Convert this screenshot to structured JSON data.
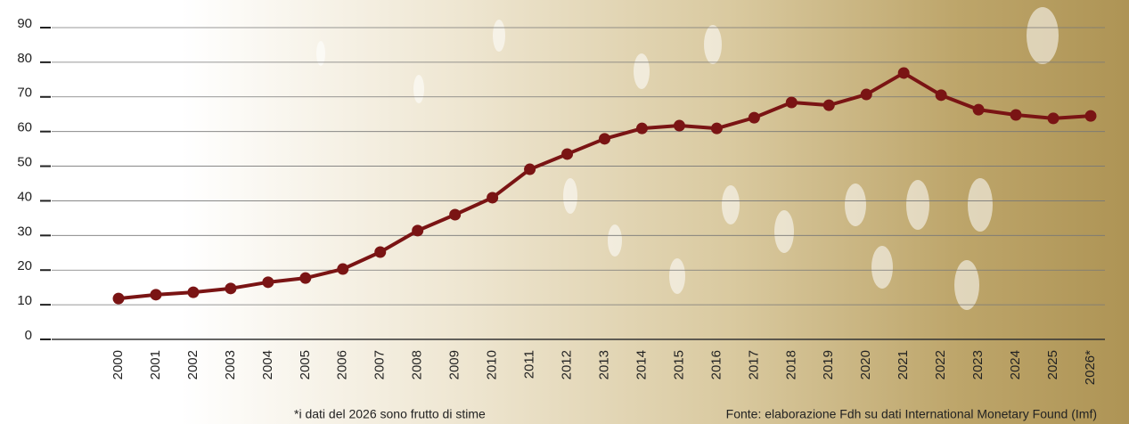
{
  "chart_data": {
    "type": "line",
    "categories": [
      "2000",
      "2001",
      "2002",
      "2003",
      "2004",
      "2005",
      "2006",
      "2007",
      "2008",
      "2009",
      "2010",
      "2011",
      "2012",
      "2013",
      "2014",
      "2015",
      "2016",
      "2017",
      "2018",
      "2019",
      "2020",
      "2021",
      "2022",
      "2023",
      "2024",
      "2025",
      "2026*"
    ],
    "values": [
      11.8,
      12.9,
      13.6,
      14.7,
      16.5,
      17.7,
      20.3,
      25.2,
      31.4,
      36.0,
      40.9,
      49.1,
      53.5,
      57.9,
      60.9,
      61.7,
      60.9,
      64.0,
      68.4,
      67.6,
      70.7,
      76.9,
      70.5,
      66.3,
      64.8,
      63.8,
      64.5
    ],
    "color": "#7a1414",
    "ylim": [
      0,
      90
    ],
    "yticks": [
      0,
      10,
      20,
      30,
      40,
      50,
      60,
      70,
      80,
      90
    ],
    "grid": true,
    "footnote": "*i dati del 2026 sono frutto di stime",
    "source": "Fonte: elaborazione Fdh su dati International Monetary Found (Imf)"
  }
}
